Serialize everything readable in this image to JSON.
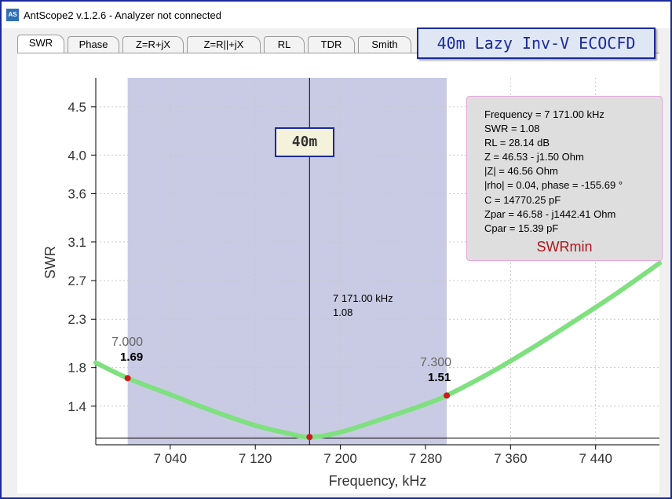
{
  "window": {
    "app_icon": "AS",
    "title": "AntScope2 v.1.2.6 - Analyzer not connected"
  },
  "tabs": [
    {
      "label": "SWR",
      "active": true
    },
    {
      "label": "Phase"
    },
    {
      "label": "Z=R+jX"
    },
    {
      "label": "Z=R||+jX"
    },
    {
      "label": "RL"
    },
    {
      "label": "TDR"
    },
    {
      "label": "Smith"
    }
  ],
  "banner": "40m Lazy Inv-V ECOCFD",
  "band_label": "40m",
  "info": {
    "lines": [
      "Frequency = 7 171.00 kHz",
      "SWR = 1.08",
      "RL = 28.14 dB",
      "Z = 46.53 - j1.50 Ohm",
      "|Z| = 46.56 Ohm",
      "|rho| = 0.04, phase = -155.69 °",
      "C = 14770.25 pF",
      "Zpar = 46.58 - j1442.41 Ohm",
      "Cpar = 15.39 pF"
    ],
    "tag": "SWRmin"
  },
  "cursor_readout": {
    "freq": "7 171.00 kHz",
    "swr": "1.08"
  },
  "markers": [
    {
      "label": "7.000",
      "value": "1.69"
    },
    {
      "label": "7.300",
      "value": "1.51"
    }
  ],
  "colors": {
    "curve": "#7fe07f",
    "band": "#c9cbe4",
    "marker": "#d0181e",
    "accent": "#1a2a9c",
    "tag": "#b3141b"
  },
  "chart_data": {
    "type": "line",
    "xlabel": "Frequency, kHz",
    "ylabel": "SWR",
    "xlim": [
      6970,
      7500
    ],
    "ylim": [
      1.0,
      4.8
    ],
    "x_ticks": [
      7040,
      7120,
      7200,
      7280,
      7360,
      7440
    ],
    "x_tick_labels": [
      "7 040",
      "7 120",
      "7 200",
      "7 280",
      "7 360",
      "7 440"
    ],
    "y_ticks": [
      1.4,
      1.8,
      2.3,
      2.7,
      3.1,
      3.6,
      4.0,
      4.5
    ],
    "y_tick_labels": [
      "1.4",
      "1.8",
      "2.3",
      "2.7",
      "3.1",
      "3.6",
      "4.0",
      "4.5"
    ],
    "band": [
      7000,
      7300
    ],
    "cursor_x": 7171,
    "grid": true,
    "series": [
      {
        "x": [
          6970,
          7000,
          7040,
          7080,
          7120,
          7150,
          7171,
          7200,
          7240,
          7280,
          7300,
          7340,
          7380,
          7420,
          7460,
          7500
        ],
        "y": [
          1.85,
          1.69,
          1.52,
          1.35,
          1.2,
          1.12,
          1.08,
          1.13,
          1.27,
          1.42,
          1.51,
          1.74,
          2.0,
          2.28,
          2.57,
          2.88
        ]
      }
    ],
    "markers": [
      {
        "x": 7000,
        "y": 1.69
      },
      {
        "x": 7300,
        "y": 1.51
      },
      {
        "x": 7171,
        "y": 1.08
      }
    ]
  }
}
